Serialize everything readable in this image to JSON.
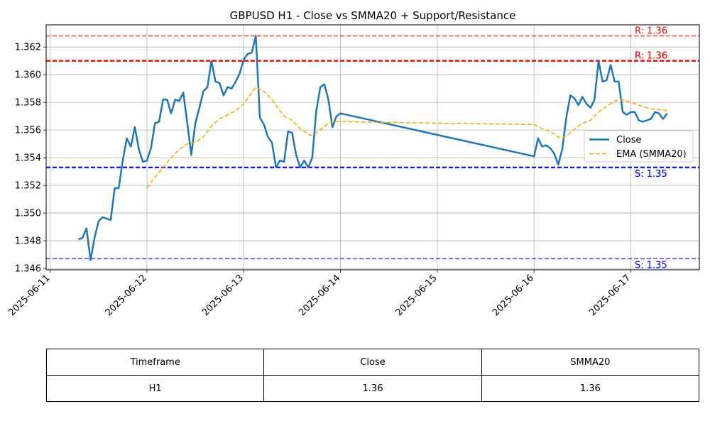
{
  "chart_data": {
    "type": "line",
    "title": "GBPUSD H1 - Close vs SMMA20 + Support/Resistance",
    "xlabel": "",
    "ylabel": "",
    "x_range": [
      "2025-06-10T23:00",
      "2025-06-17T17:00"
    ],
    "ylim": [
      1.3459,
      1.3636
    ],
    "grid": true,
    "legend_position": "center-right",
    "x_ticks": [
      "2025-06-11",
      "2025-06-12",
      "2025-06-13",
      "2025-06-14",
      "2025-06-15",
      "2025-06-16",
      "2025-06-17"
    ],
    "y_ticks": [
      "1.346",
      "1.348",
      "1.350",
      "1.352",
      "1.354",
      "1.356",
      "1.358",
      "1.360",
      "1.362"
    ],
    "series": [
      {
        "name": "Close",
        "color": "#1f77b4",
        "style": "solid",
        "points": [
          [
            "2025-06-11T07:00",
            1.3481
          ],
          [
            "2025-06-11T08:00",
            1.3482
          ],
          [
            "2025-06-11T09:00",
            1.3489
          ],
          [
            "2025-06-11T10:00",
            1.3466
          ],
          [
            "2025-06-11T11:00",
            1.3482
          ],
          [
            "2025-06-11T12:00",
            1.3494
          ],
          [
            "2025-06-11T13:00",
            1.3497
          ],
          [
            "2025-06-11T15:00",
            1.3495
          ],
          [
            "2025-06-11T16:00",
            1.3518
          ],
          [
            "2025-06-11T17:00",
            1.3518
          ],
          [
            "2025-06-11T18:00",
            1.3538
          ],
          [
            "2025-06-11T19:00",
            1.3554
          ],
          [
            "2025-06-11T20:00",
            1.3548
          ],
          [
            "2025-06-11T21:00",
            1.3562
          ],
          [
            "2025-06-11T22:00",
            1.3546
          ],
          [
            "2025-06-11T23:00",
            1.3537
          ],
          [
            "2025-06-12T00:00",
            1.3538
          ],
          [
            "2025-06-12T01:00",
            1.3547
          ],
          [
            "2025-06-12T02:00",
            1.3565
          ],
          [
            "2025-06-12T03:00",
            1.3566
          ],
          [
            "2025-06-12T04:00",
            1.3582
          ],
          [
            "2025-06-12T05:00",
            1.3582
          ],
          [
            "2025-06-12T06:00",
            1.3572
          ],
          [
            "2025-06-12T07:00",
            1.3582
          ],
          [
            "2025-06-12T08:00",
            1.3581
          ],
          [
            "2025-06-12T09:00",
            1.3587
          ],
          [
            "2025-06-12T10:00",
            1.3565
          ],
          [
            "2025-06-12T11:00",
            1.3542
          ],
          [
            "2025-06-12T12:00",
            1.3565
          ],
          [
            "2025-06-12T13:00",
            1.3576
          ],
          [
            "2025-06-12T14:00",
            1.3588
          ],
          [
            "2025-06-12T15:00",
            1.3591
          ],
          [
            "2025-06-12T16:00",
            1.361
          ],
          [
            "2025-06-12T17:00",
            1.3595
          ],
          [
            "2025-06-12T18:00",
            1.3594
          ],
          [
            "2025-06-12T19:00",
            1.3585
          ],
          [
            "2025-06-12T20:00",
            1.3591
          ],
          [
            "2025-06-12T21:00",
            1.359
          ],
          [
            "2025-06-12T22:00",
            1.3595
          ],
          [
            "2025-06-12T23:00",
            1.3601
          ],
          [
            "2025-06-13T00:00",
            1.3611
          ],
          [
            "2025-06-13T01:00",
            1.3615
          ],
          [
            "2025-06-13T02:00",
            1.3616
          ],
          [
            "2025-06-13T03:00",
            1.3628
          ],
          [
            "2025-06-13T04:00",
            1.3569
          ],
          [
            "2025-06-13T05:00",
            1.3564
          ],
          [
            "2025-06-13T06:00",
            1.3555
          ],
          [
            "2025-06-13T07:00",
            1.3551
          ],
          [
            "2025-06-13T08:00",
            1.3533
          ],
          [
            "2025-06-13T09:00",
            1.3538
          ],
          [
            "2025-06-13T10:00",
            1.3537
          ],
          [
            "2025-06-13T11:00",
            1.3559
          ],
          [
            "2025-06-13T12:00",
            1.3558
          ],
          [
            "2025-06-13T13:00",
            1.3542
          ],
          [
            "2025-06-13T14:00",
            1.3533
          ],
          [
            "2025-06-13T15:00",
            1.3538
          ],
          [
            "2025-06-13T16:00",
            1.3533
          ],
          [
            "2025-06-13T17:00",
            1.354
          ],
          [
            "2025-06-13T18:00",
            1.3574
          ],
          [
            "2025-06-13T19:00",
            1.3591
          ],
          [
            "2025-06-13T20:00",
            1.3593
          ],
          [
            "2025-06-13T21:00",
            1.3582
          ],
          [
            "2025-06-13T22:00",
            1.3562
          ],
          [
            "2025-06-13T23:00",
            1.357
          ],
          [
            "2025-06-14T00:00",
            1.3572
          ],
          [
            "2025-06-16T00:00",
            1.3541
          ],
          [
            "2025-06-16T01:00",
            1.3554
          ],
          [
            "2025-06-16T02:00",
            1.3548
          ],
          [
            "2025-06-16T03:00",
            1.3549
          ],
          [
            "2025-06-16T04:00",
            1.3547
          ],
          [
            "2025-06-16T05:00",
            1.3543
          ],
          [
            "2025-06-16T06:00",
            1.3535
          ],
          [
            "2025-06-16T07:00",
            1.3546
          ],
          [
            "2025-06-16T08:00",
            1.3569
          ],
          [
            "2025-06-16T09:00",
            1.3585
          ],
          [
            "2025-06-16T10:00",
            1.3583
          ],
          [
            "2025-06-16T11:00",
            1.3578
          ],
          [
            "2025-06-16T12:00",
            1.3584
          ],
          [
            "2025-06-16T13:00",
            1.3579
          ],
          [
            "2025-06-16T14:00",
            1.3576
          ],
          [
            "2025-06-16T15:00",
            1.3582
          ],
          [
            "2025-06-16T16:00",
            1.361
          ],
          [
            "2025-06-16T17:00",
            1.3595
          ],
          [
            "2025-06-16T18:00",
            1.3596
          ],
          [
            "2025-06-16T19:00",
            1.3607
          ],
          [
            "2025-06-16T20:00",
            1.3595
          ],
          [
            "2025-06-16T21:00",
            1.3595
          ],
          [
            "2025-06-16T22:00",
            1.3573
          ],
          [
            "2025-06-16T23:00",
            1.3571
          ],
          [
            "2025-06-17T00:00",
            1.3573
          ],
          [
            "2025-06-17T01:00",
            1.3573
          ],
          [
            "2025-06-17T02:00",
            1.3567
          ],
          [
            "2025-06-17T03:00",
            1.3566
          ],
          [
            "2025-06-17T04:00",
            1.3567
          ],
          [
            "2025-06-17T05:00",
            1.3568
          ],
          [
            "2025-06-17T06:00",
            1.3573
          ],
          [
            "2025-06-17T07:00",
            1.3572
          ],
          [
            "2025-06-17T08:00",
            1.3568
          ],
          [
            "2025-06-17T09:00",
            1.3572
          ]
        ]
      },
      {
        "name": "EMA (SMMA20)",
        "color": "#ffa500",
        "style": "dashed",
        "points": [
          [
            "2025-06-12T00:00",
            1.3518
          ],
          [
            "2025-06-12T02:00",
            1.3526
          ],
          [
            "2025-06-12T04:00",
            1.3533
          ],
          [
            "2025-06-12T06:00",
            1.354
          ],
          [
            "2025-06-12T08:00",
            1.3546
          ],
          [
            "2025-06-12T10:00",
            1.355
          ],
          [
            "2025-06-12T12:00",
            1.3551
          ],
          [
            "2025-06-12T14:00",
            1.3555
          ],
          [
            "2025-06-12T16:00",
            1.3563
          ],
          [
            "2025-06-12T18:00",
            1.3568
          ],
          [
            "2025-06-12T20:00",
            1.3571
          ],
          [
            "2025-06-12T22:00",
            1.3574
          ],
          [
            "2025-06-13T00:00",
            1.3579
          ],
          [
            "2025-06-13T02:00",
            1.3587
          ],
          [
            "2025-06-13T03:00",
            1.3591
          ],
          [
            "2025-06-13T05:00",
            1.3588
          ],
          [
            "2025-06-13T07:00",
            1.3582
          ],
          [
            "2025-06-13T09:00",
            1.3574
          ],
          [
            "2025-06-13T10:00",
            1.357
          ],
          [
            "2025-06-13T12:00",
            1.3567
          ],
          [
            "2025-06-13T14:00",
            1.3561
          ],
          [
            "2025-06-13T16:00",
            1.3557
          ],
          [
            "2025-06-13T17:00",
            1.3556
          ],
          [
            "2025-06-13T19:00",
            1.356
          ],
          [
            "2025-06-13T21:00",
            1.3565
          ],
          [
            "2025-06-13T23:00",
            1.3566
          ],
          [
            "2025-06-14T00:00",
            1.3566
          ],
          [
            "2025-06-15T00:00",
            1.3565
          ],
          [
            "2025-06-16T00:00",
            1.3564
          ],
          [
            "2025-06-16T02:00",
            1.3561
          ],
          [
            "2025-06-16T04:00",
            1.3559
          ],
          [
            "2025-06-16T06:00",
            1.3555
          ],
          [
            "2025-06-16T07:00",
            1.3554
          ],
          [
            "2025-06-16T09:00",
            1.3558
          ],
          [
            "2025-06-16T11:00",
            1.3563
          ],
          [
            "2025-06-16T13:00",
            1.3566
          ],
          [
            "2025-06-16T14:00",
            1.3567
          ],
          [
            "2025-06-16T16:00",
            1.3573
          ],
          [
            "2025-06-16T18:00",
            1.3577
          ],
          [
            "2025-06-16T20:00",
            1.3581
          ],
          [
            "2025-06-16T22:00",
            1.3582
          ],
          [
            "2025-06-17T00:00",
            1.358
          ],
          [
            "2025-06-17T02:00",
            1.3578
          ],
          [
            "2025-06-17T04:00",
            1.3576
          ],
          [
            "2025-06-17T06:00",
            1.3575
          ],
          [
            "2025-06-17T09:00",
            1.3574
          ]
        ]
      }
    ],
    "levels": [
      {
        "kind": "resistance",
        "value": 1.3628,
        "label": "R: 1.36",
        "color": "#ff0000",
        "width": 1.5,
        "opacity": 0.75
      },
      {
        "kind": "resistance",
        "value": 1.361,
        "label": "R: 1.36",
        "color": "#ff0000",
        "width": 2.5,
        "opacity": 0.75
      },
      {
        "kind": "resistance",
        "value": 1.361,
        "label": "R: 1.36",
        "color": "#ff0000",
        "width": 2.5,
        "opacity": 0.75
      },
      {
        "kind": "support",
        "value": 1.3533,
        "label": "S: 1.35",
        "color": "#0000ff",
        "width": 2,
        "opacity": 0.85
      },
      {
        "kind": "support",
        "value": 1.3533,
        "label": "S: 1.35",
        "color": "#0000ff",
        "width": 2,
        "opacity": 0.85
      },
      {
        "kind": "support",
        "value": 1.3467,
        "label": "S: 1.35",
        "color": "#0000ff",
        "width": 1.5,
        "opacity": 0.75
      }
    ]
  },
  "table": {
    "header": [
      "Timeframe",
      "Close",
      "SMMA20"
    ],
    "row": [
      "H1",
      "1.36",
      "1.36"
    ]
  }
}
